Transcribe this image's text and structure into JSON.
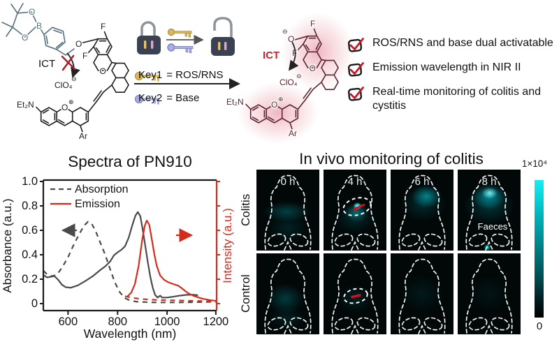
{
  "reaction": {
    "molecule_left_labels": {
      "o_ring1": "O",
      "o_ring2": "O",
      "b": "B",
      "o_ether": "O",
      "f_top": "F",
      "f_side": "F",
      "o_pyran": "O",
      "clo4": "ClO₄",
      "clo4_charge": "⊖",
      "o_plus": "O",
      "o_plus_charge": "⊕",
      "et2n": "Et₂N",
      "ar": "Ar",
      "ict": "ICT"
    },
    "molecule_right_labels": {
      "o_phenolate": "O",
      "o_phenolate_charge": "⊖",
      "f_top": "F",
      "f_side": "F",
      "o_pyran": "O",
      "clo4": "ClO₄",
      "clo4_charge": "⊖",
      "o_plus": "O",
      "o_plus_charge": "⊕",
      "et2n": "Et₂N",
      "ar": "Ar",
      "ict": "ICT"
    },
    "key1_name": "Key1",
    "key1_value": "= ROS/RNS",
    "key2_name": "Key2",
    "key2_value": "= Base"
  },
  "checklist": {
    "items": [
      "ROS/RNS and base dual activatable",
      "Emission wavelength in NIR II",
      "Real-time monitoring of colitis and cystitis"
    ]
  },
  "spectra": {
    "title": "Spectra of PN910",
    "xlabel": "Wavelength (nm)",
    "ylabel_left": "Absorbance (a.u.)",
    "ylabel_right": "Intensity (a.u.)",
    "legend": [
      "Absorption",
      "Emission"
    ],
    "xticks": [
      "600",
      "800",
      "1000",
      "1200"
    ],
    "yticks": [
      "0",
      "0.2",
      "0.4",
      "0.6",
      "0.8",
      "1.0"
    ]
  },
  "chart_data": {
    "type": "line",
    "title": "Spectra of PN910",
    "xlabel": "Wavelength (nm)",
    "ylabel_left": "Absorbance (a.u.)",
    "ylabel_right": "Intensity (a.u.)",
    "xlim": [
      500,
      1200
    ],
    "ylim": [
      0,
      1.0
    ],
    "legend_position": "top-left",
    "series": [
      {
        "name": "absorption-dashed-gray",
        "legend": "Absorption",
        "color": "#4a4a4a",
        "dash": "7 6",
        "points": [
          [
            500,
            0.27
          ],
          [
            515,
            0.24
          ],
          [
            530,
            0.225
          ],
          [
            545,
            0.23
          ],
          [
            560,
            0.25
          ],
          [
            580,
            0.31
          ],
          [
            600,
            0.38
          ],
          [
            620,
            0.47
          ],
          [
            645,
            0.57
          ],
          [
            665,
            0.64
          ],
          [
            680,
            0.67
          ],
          [
            695,
            0.655
          ],
          [
            710,
            0.6
          ],
          [
            730,
            0.5
          ],
          [
            750,
            0.4
          ],
          [
            770,
            0.28
          ],
          [
            790,
            0.17
          ],
          [
            810,
            0.09
          ],
          [
            830,
            0.045
          ],
          [
            850,
            0.025
          ],
          [
            880,
            0.015
          ],
          [
            950,
            0.01
          ],
          [
            1050,
            0.01
          ],
          [
            1120,
            0.012
          ],
          [
            1200,
            0.015
          ]
        ]
      },
      {
        "name": "absorption-solid-gray",
        "legend": "",
        "color": "#4a4a4a",
        "dash": "",
        "points": [
          [
            500,
            0.235
          ],
          [
            515,
            0.215
          ],
          [
            530,
            0.22
          ],
          [
            545,
            0.225
          ],
          [
            560,
            0.195
          ],
          [
            575,
            0.155
          ],
          [
            590,
            0.135
          ],
          [
            610,
            0.13
          ],
          [
            640,
            0.15
          ],
          [
            670,
            0.185
          ],
          [
            700,
            0.225
          ],
          [
            730,
            0.275
          ],
          [
            750,
            0.305
          ],
          [
            770,
            0.345
          ],
          [
            785,
            0.395
          ],
          [
            800,
            0.42
          ],
          [
            815,
            0.44
          ],
          [
            830,
            0.47
          ],
          [
            845,
            0.54
          ],
          [
            860,
            0.645
          ],
          [
            872,
            0.72
          ],
          [
            882,
            0.75
          ],
          [
            892,
            0.715
          ],
          [
            902,
            0.6
          ],
          [
            912,
            0.47
          ],
          [
            922,
            0.34
          ],
          [
            932,
            0.22
          ],
          [
            942,
            0.13
          ],
          [
            952,
            0.07
          ],
          [
            962,
            0.05
          ],
          [
            972,
            0.065
          ],
          [
            980,
            0.05
          ],
          [
            1000,
            0.05
          ],
          [
            1020,
            0.055
          ],
          [
            1050,
            0.065
          ],
          [
            1080,
            0.072
          ],
          [
            1110,
            0.072
          ],
          [
            1125,
            0.068
          ]
        ]
      },
      {
        "name": "emission-solid-red",
        "legend": "Emission",
        "color": "#d52b1c",
        "dash": "",
        "points": [
          [
            838,
            0.055
          ],
          [
            855,
            0.09
          ],
          [
            870,
            0.16
          ],
          [
            885,
            0.31
          ],
          [
            900,
            0.53
          ],
          [
            910,
            0.64
          ],
          [
            918,
            0.68
          ],
          [
            928,
            0.645
          ],
          [
            938,
            0.53
          ],
          [
            948,
            0.41
          ],
          [
            958,
            0.31
          ],
          [
            972,
            0.23
          ],
          [
            988,
            0.195
          ],
          [
            1005,
            0.175
          ],
          [
            1025,
            0.16
          ],
          [
            1045,
            0.147
          ],
          [
            1060,
            0.125
          ],
          [
            1075,
            0.1
          ],
          [
            1090,
            0.08
          ],
          [
            1110,
            0.062
          ],
          [
            1140,
            0.042
          ],
          [
            1170,
            0.03
          ],
          [
            1200,
            0.022
          ]
        ]
      },
      {
        "name": "emission-dashed-red",
        "legend": "",
        "color": "#d52b1c",
        "dash": "7 6",
        "points": [
          [
            830,
            0.06
          ],
          [
            860,
            0.047
          ],
          [
            900,
            0.037
          ],
          [
            950,
            0.031
          ],
          [
            1000,
            0.028
          ],
          [
            1060,
            0.025
          ],
          [
            1120,
            0.022
          ],
          [
            1200,
            0.018
          ]
        ]
      }
    ]
  },
  "invivo": {
    "title": "In vivo monitoring of colitis",
    "row_labels": [
      "Colitis",
      "Control"
    ],
    "time_labels": [
      "0 h",
      "4 h",
      "6 h",
      "8 h"
    ],
    "annotation": "Faeces",
    "colorbar": {
      "max": "1×10⁴",
      "min": "0"
    }
  }
}
